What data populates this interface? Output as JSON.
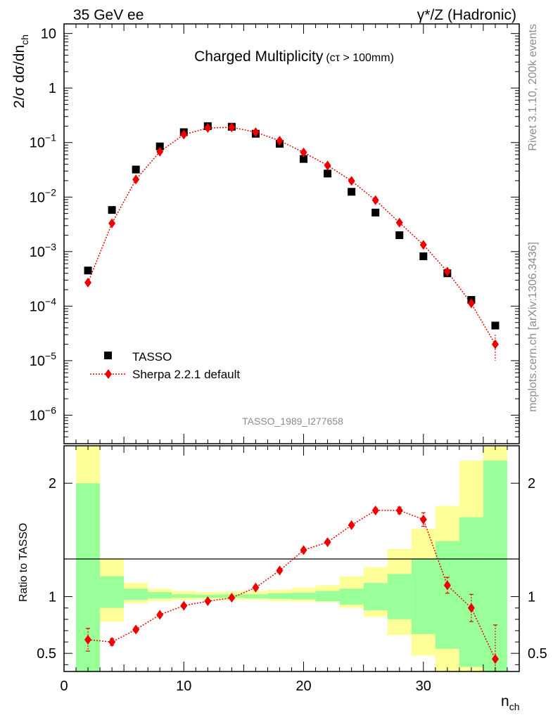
{
  "header": {
    "left": "35 GeV ee",
    "right": "γ*/Z (Hadronic)"
  },
  "side_labels": {
    "rivet": "Rivet 3.1.10,  200k events",
    "mcplots": "mcplots.cern.ch [arXiv:1306.3436]"
  },
  "chart_data": [
    {
      "type": "scatter",
      "panel": "main",
      "title_main": "Charged Multiplicity",
      "title_sub": "(cτ > 100mm)",
      "ylabel": "2/σ dσ/dn",
      "ylabel_sub": "ch",
      "yscale": "log",
      "ylim": [
        3e-07,
        15
      ],
      "xlim": [
        0,
        38
      ],
      "y_tick_labels": [
        {
          "value": 10,
          "base": "10",
          "exp": ""
        },
        {
          "value": 1,
          "base": "1",
          "exp": ""
        },
        {
          "value": 0.1,
          "base": "10",
          "exp": "−1"
        },
        {
          "value": 0.01,
          "base": "10",
          "exp": "−2"
        },
        {
          "value": 0.001,
          "base": "10",
          "exp": "−3"
        },
        {
          "value": 0.0001,
          "base": "10",
          "exp": "−4"
        },
        {
          "value": 1e-05,
          "base": "10",
          "exp": "−5"
        },
        {
          "value": 1e-06,
          "base": "10",
          "exp": "−6"
        }
      ],
      "watermark": "TASSO_1989_I277658",
      "legend_position": "bottom-left",
      "series": [
        {
          "name": "TASSO",
          "color": "#000000",
          "marker": "square",
          "x": [
            2,
            4,
            6,
            8,
            10,
            12,
            14,
            16,
            18,
            20,
            22,
            24,
            26,
            28,
            30,
            32,
            34,
            36
          ],
          "y": [
            0.00045,
            0.0058,
            0.032,
            0.085,
            0.155,
            0.2,
            0.195,
            0.145,
            0.095,
            0.05,
            0.027,
            0.0125,
            0.0052,
            0.002,
            0.00082,
            0.0004,
            0.00013,
            4.4e-05
          ]
        },
        {
          "name": "Sherpa 2.2.1 default",
          "color": "#ee0000",
          "marker": "diamond",
          "line": "dotted",
          "x": [
            2,
            4,
            6,
            8,
            10,
            12,
            14,
            16,
            18,
            20,
            22,
            24,
            26,
            28,
            30,
            32,
            34,
            36
          ],
          "y": [
            0.00027,
            0.0033,
            0.021,
            0.068,
            0.14,
            0.185,
            0.19,
            0.155,
            0.108,
            0.066,
            0.038,
            0.0198,
            0.0088,
            0.0034,
            0.00133,
            0.00043,
            0.000112,
            2e-05
          ],
          "yerr": [
            0,
            0,
            0,
            0,
            0,
            0,
            0,
            0,
            0,
            0,
            0,
            0,
            0,
            0,
            0,
            0,
            1.5e-05,
            1e-05
          ]
        }
      ]
    },
    {
      "type": "scatter",
      "panel": "ratio",
      "ylabel": "Ratio to TASSO",
      "xlabel": "n",
      "xlabel_sub": "ch",
      "ylim": [
        0.34,
        2.33
      ],
      "xlim": [
        0,
        38
      ],
      "x_tick_labels": [
        "0",
        "10",
        "20",
        "30"
      ],
      "x_tick_values": [
        0,
        10,
        20,
        30
      ],
      "y_tick_labels": [
        "0.5",
        "1",
        "2"
      ],
      "y_tick_values": [
        0.5,
        1,
        2
      ],
      "uncertainty_bands": [
        {
          "xlo": 1,
          "xhi": 3,
          "stat_lo": 0.0,
          "stat_hi": 2.0,
          "tot_lo": 0.0,
          "tot_hi": 2.5
        },
        {
          "xlo": 3,
          "xhi": 5,
          "stat_lo": 0.9,
          "stat_hi": 1.18,
          "tot_lo": 0.78,
          "tot_hi": 1.34
        },
        {
          "xlo": 5,
          "xhi": 7,
          "stat_lo": 0.97,
          "stat_hi": 1.07,
          "tot_lo": 0.94,
          "tot_hi": 1.12
        },
        {
          "xlo": 7,
          "xhi": 9,
          "stat_lo": 0.985,
          "stat_hi": 1.04,
          "tot_lo": 0.96,
          "tot_hi": 1.07
        },
        {
          "xlo": 9,
          "xhi": 11,
          "stat_lo": 0.99,
          "stat_hi": 1.02,
          "tot_lo": 0.97,
          "tot_hi": 1.05
        },
        {
          "xlo": 11,
          "xhi": 13,
          "stat_lo": 0.99,
          "stat_hi": 1.015,
          "tot_lo": 0.975,
          "tot_hi": 1.04
        },
        {
          "xlo": 13,
          "xhi": 15,
          "stat_lo": 0.99,
          "stat_hi": 1.02,
          "tot_lo": 0.97,
          "tot_hi": 1.045
        },
        {
          "xlo": 15,
          "xhi": 17,
          "stat_lo": 0.985,
          "stat_hi": 1.02,
          "tot_lo": 0.97,
          "tot_hi": 1.05
        },
        {
          "xlo": 17,
          "xhi": 19,
          "stat_lo": 0.98,
          "stat_hi": 1.03,
          "tot_lo": 0.96,
          "tot_hi": 1.06
        },
        {
          "xlo": 19,
          "xhi": 21,
          "stat_lo": 0.975,
          "stat_hi": 1.035,
          "tot_lo": 0.955,
          "tot_hi": 1.08
        },
        {
          "xlo": 21,
          "xhi": 23,
          "stat_lo": 0.96,
          "stat_hi": 1.05,
          "tot_lo": 0.95,
          "tot_hi": 1.1
        },
        {
          "xlo": 23,
          "xhi": 25,
          "stat_lo": 0.93,
          "stat_hi": 1.07,
          "tot_lo": 0.9,
          "tot_hi": 1.18
        },
        {
          "xlo": 25,
          "xhi": 27,
          "stat_lo": 0.88,
          "stat_hi": 1.12,
          "tot_lo": 0.82,
          "tot_hi": 1.26
        },
        {
          "xlo": 27,
          "xhi": 29,
          "stat_lo": 0.8,
          "stat_hi": 1.2,
          "tot_lo": 0.66,
          "tot_hi": 1.42
        },
        {
          "xlo": 29,
          "xhi": 31,
          "stat_lo": 0.67,
          "stat_hi": 1.33,
          "tot_lo": 0.48,
          "tot_hi": 1.6
        },
        {
          "xlo": 31,
          "xhi": 33,
          "stat_lo": 0.54,
          "stat_hi": 1.49,
          "tot_lo": 0.0,
          "tot_hi": 1.8
        },
        {
          "xlo": 33,
          "xhi": 35,
          "stat_lo": 0.38,
          "stat_hi": 1.7,
          "tot_lo": 0.0,
          "tot_hi": 2.2
        },
        {
          "xlo": 35,
          "xhi": 37,
          "stat_lo": 0.0,
          "stat_hi": 2.2,
          "tot_lo": 0.0,
          "tot_hi": 2.5
        }
      ],
      "band_colors": {
        "stat": "#99ff99",
        "total": "#ffff99"
      },
      "series": [
        {
          "name": "Sherpa 2.2.1 default",
          "color": "#ee0000",
          "marker": "diamond",
          "line": "dotted",
          "x": [
            2,
            4,
            6,
            8,
            10,
            12,
            14,
            16,
            18,
            20,
            22,
            24,
            26,
            28,
            30,
            32,
            34,
            36
          ],
          "y": [
            0.62,
            0.6,
            0.71,
            0.84,
            0.92,
            0.96,
            0.99,
            1.08,
            1.23,
            1.41,
            1.48,
            1.63,
            1.76,
            1.76,
            1.68,
            1.1,
            0.9,
            0.45
          ],
          "yerr": [
            0.1,
            0.03,
            0.02,
            0.01,
            0.01,
            0.01,
            0.01,
            0.01,
            0.01,
            0.01,
            0.01,
            0.015,
            0.02,
            0.03,
            0.06,
            0.07,
            0.12,
            0.3
          ]
        }
      ]
    }
  ]
}
